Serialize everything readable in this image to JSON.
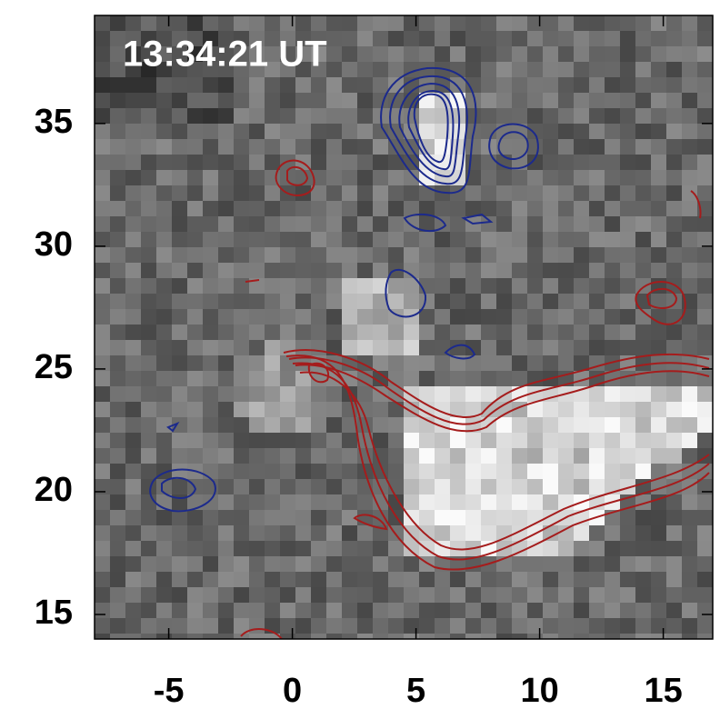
{
  "chart_data": {
    "type": "image",
    "title": "13:34:21 UT",
    "xlim": [
      -8,
      17
    ],
    "xticks": [
      -5,
      0,
      5,
      10,
      15
    ],
    "ylim": [
      14,
      39.4
    ],
    "yticks": [
      15,
      20,
      25,
      30,
      35
    ]
  }
}
